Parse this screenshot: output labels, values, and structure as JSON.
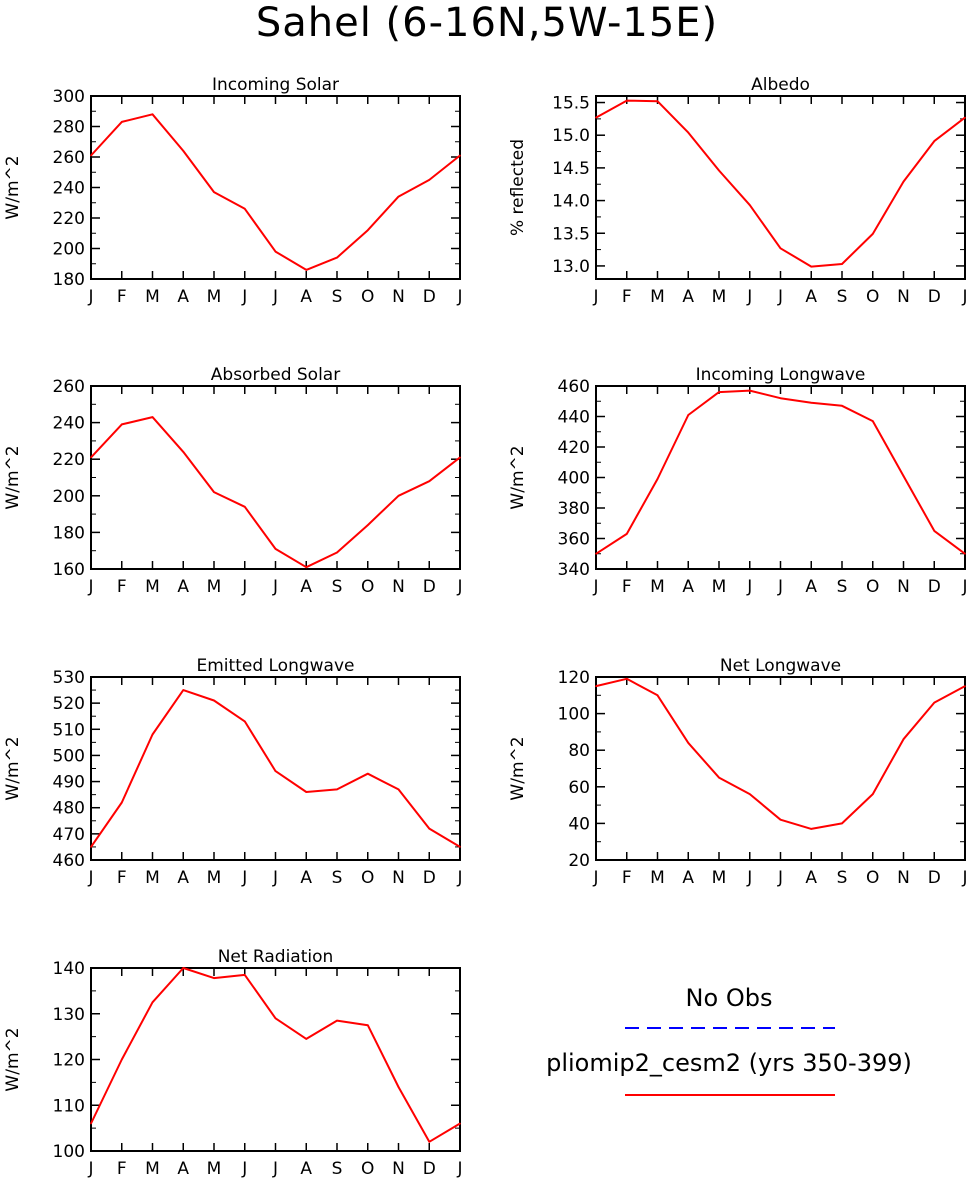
{
  "title": "Sahel (6-16N,5W-15E)",
  "colors": {
    "model": "#ff0000",
    "obs": "#0000ff",
    "axis": "#000000"
  },
  "legend": {
    "obs_label": "No Obs",
    "model_label": "pliomip2_cesm2 (yrs 350-399)"
  },
  "chart_data": [
    {
      "type": "line",
      "title": "Incoming Solar",
      "ylabel": "W/m^2",
      "xlabel": "",
      "categories": [
        "J",
        "F",
        "M",
        "A",
        "M",
        "J",
        "J",
        "A",
        "S",
        "O",
        "N",
        "D",
        "J"
      ],
      "ylim": [
        180,
        300
      ],
      "yticks": [
        "180",
        "200",
        "220",
        "240",
        "260",
        "280",
        "300"
      ],
      "series": [
        {
          "name": "pliomip2_cesm2 (yrs 350-399)",
          "values": [
            261,
            283,
            288,
            264,
            237,
            226,
            198,
            186,
            194,
            212,
            234,
            245,
            261
          ]
        }
      ]
    },
    {
      "type": "line",
      "title": "Albedo",
      "ylabel": "% reflected",
      "xlabel": "",
      "categories": [
        "J",
        "F",
        "M",
        "A",
        "M",
        "J",
        "J",
        "A",
        "S",
        "O",
        "N",
        "D",
        "J"
      ],
      "ylim": [
        12.8,
        15.6
      ],
      "yticks": [
        "13.0",
        "13.5",
        "14.0",
        "14.5",
        "15.0",
        "15.5"
      ],
      "series": [
        {
          "name": "pliomip2_cesm2 (yrs 350-399)",
          "values": [
            15.27,
            15.53,
            15.52,
            15.04,
            14.46,
            13.93,
            13.27,
            12.99,
            13.03,
            13.49,
            14.29,
            14.91,
            15.27
          ]
        }
      ]
    },
    {
      "type": "line",
      "title": "Absorbed Solar",
      "ylabel": "W/m^2",
      "xlabel": "",
      "categories": [
        "J",
        "F",
        "M",
        "A",
        "M",
        "J",
        "J",
        "A",
        "S",
        "O",
        "N",
        "D",
        "J"
      ],
      "ylim": [
        160,
        260
      ],
      "yticks": [
        "160",
        "180",
        "200",
        "220",
        "240",
        "260"
      ],
      "series": [
        {
          "name": "pliomip2_cesm2 (yrs 350-399)",
          "values": [
            221,
            239,
            243,
            224,
            202,
            194,
            171,
            161,
            169,
            184,
            200,
            208,
            221
          ]
        }
      ]
    },
    {
      "type": "line",
      "title": "Incoming Longwave",
      "ylabel": "W/m^2",
      "xlabel": "",
      "categories": [
        "J",
        "F",
        "M",
        "A",
        "M",
        "J",
        "J",
        "A",
        "S",
        "O",
        "N",
        "D",
        "J"
      ],
      "ylim": [
        340,
        460
      ],
      "yticks": [
        "340",
        "360",
        "380",
        "400",
        "420",
        "440",
        "460"
      ],
      "series": [
        {
          "name": "pliomip2_cesm2 (yrs 350-399)",
          "values": [
            350,
            363,
            399,
            441,
            456,
            457,
            452,
            449,
            447,
            437,
            401,
            365,
            350
          ]
        }
      ]
    },
    {
      "type": "line",
      "title": "Emitted Longwave",
      "ylabel": "W/m^2",
      "xlabel": "",
      "categories": [
        "J",
        "F",
        "M",
        "A",
        "M",
        "J",
        "J",
        "A",
        "S",
        "O",
        "N",
        "D",
        "J"
      ],
      "ylim": [
        460,
        530
      ],
      "yticks": [
        "460",
        "470",
        "480",
        "490",
        "500",
        "510",
        "520",
        "530"
      ],
      "series": [
        {
          "name": "pliomip2_cesm2 (yrs 350-399)",
          "values": [
            465,
            482,
            508,
            525,
            521,
            513,
            494,
            486,
            487,
            493,
            487,
            472,
            465
          ]
        }
      ]
    },
    {
      "type": "line",
      "title": "Net Longwave",
      "ylabel": "W/m^2",
      "xlabel": "",
      "categories": [
        "J",
        "F",
        "M",
        "A",
        "M",
        "J",
        "J",
        "A",
        "S",
        "O",
        "N",
        "D",
        "J"
      ],
      "ylim": [
        20,
        120
      ],
      "yticks": [
        "20",
        "40",
        "60",
        "80",
        "100",
        "120"
      ],
      "series": [
        {
          "name": "pliomip2_cesm2 (yrs 350-399)",
          "values": [
            115,
            119,
            110,
            84,
            65,
            56,
            42,
            37,
            40,
            56,
            86,
            106,
            115
          ]
        }
      ]
    },
    {
      "type": "line",
      "title": "Net Radiation",
      "ylabel": "W/m^2",
      "xlabel": "",
      "categories": [
        "J",
        "F",
        "M",
        "A",
        "M",
        "J",
        "J",
        "A",
        "S",
        "O",
        "N",
        "D",
        "J"
      ],
      "ylim": [
        100,
        140
      ],
      "yticks": [
        "100",
        "110",
        "120",
        "130",
        "140"
      ],
      "series": [
        {
          "name": "pliomip2_cesm2 (yrs 350-399)",
          "values": [
            106,
            120,
            132.5,
            140,
            137.8,
            138.5,
            129,
            124.5,
            128.5,
            127.5,
            114,
            102,
            106
          ]
        }
      ]
    }
  ]
}
